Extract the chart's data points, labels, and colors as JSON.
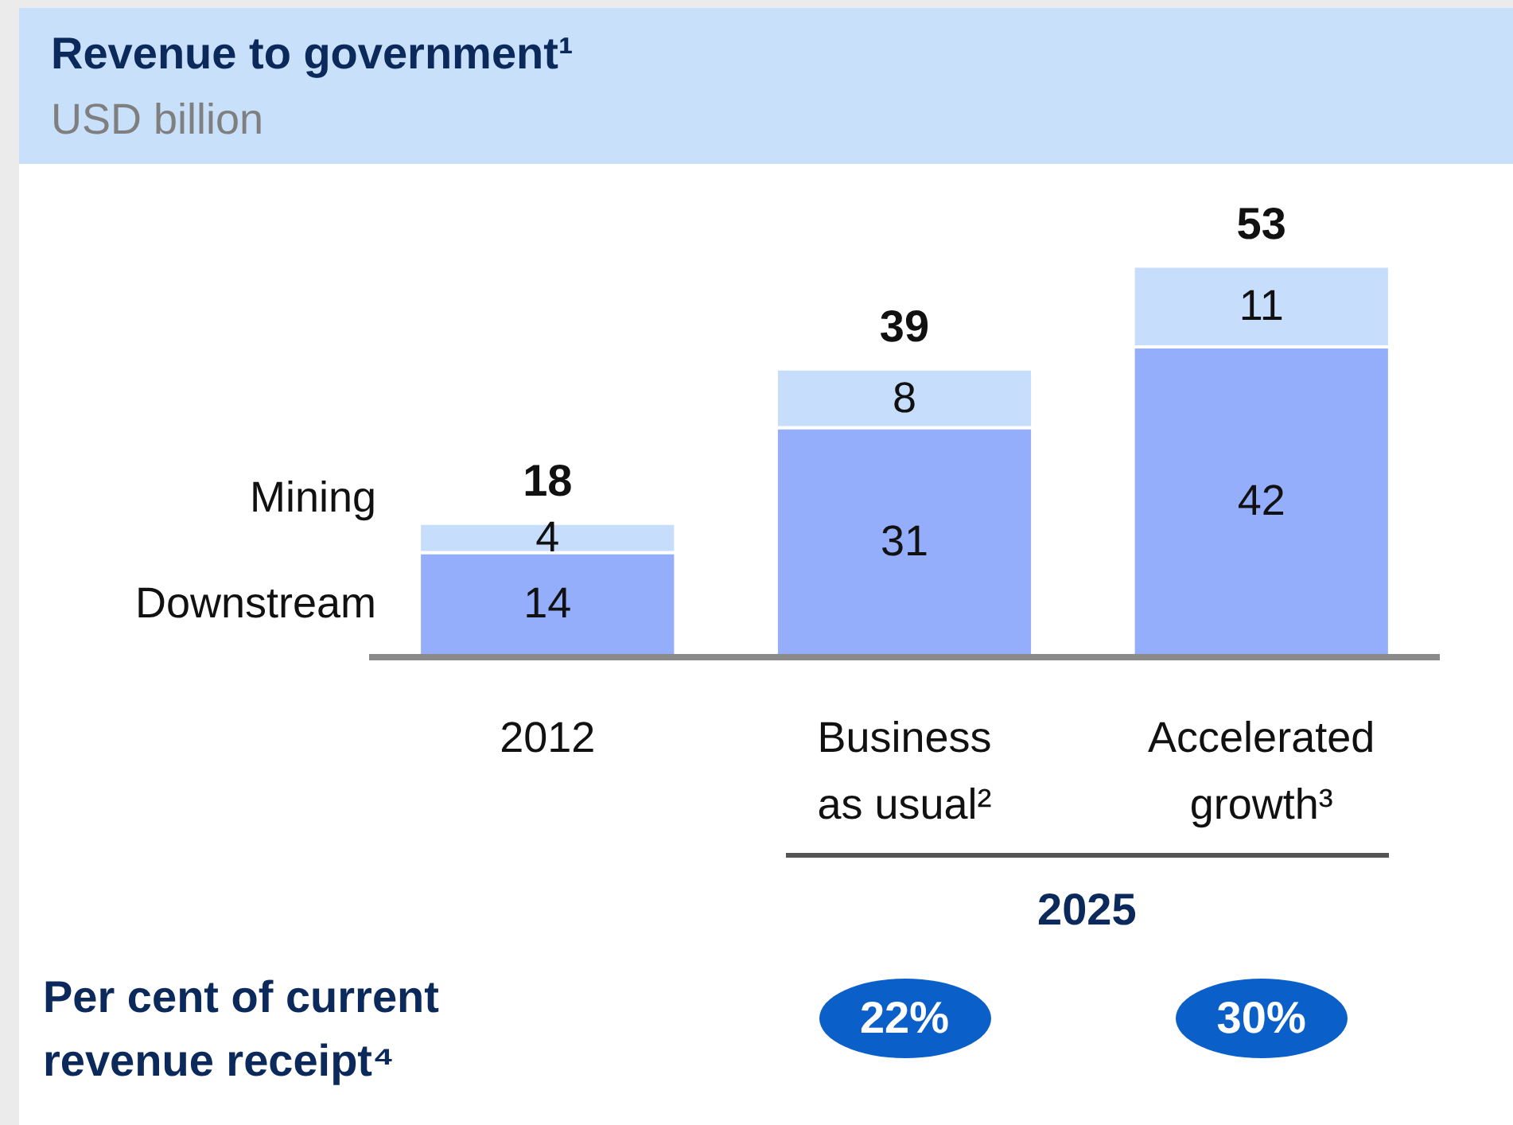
{
  "chart_data": {
    "type": "bar",
    "title": "Revenue to government¹",
    "subtitle": "USD billion",
    "categories": [
      "2012",
      "Business as usual²",
      "Accelerated growth³"
    ],
    "stacked": true,
    "data_labels": true,
    "legend": false,
    "series": [
      {
        "name": "Downstream",
        "color": "#94aefc",
        "values": [
          14,
          31,
          42
        ]
      },
      {
        "name": "Mining",
        "color": "#c6ddfb",
        "values": [
          4,
          8,
          11
        ]
      }
    ],
    "totals": [
      "18",
      "39",
      "53"
    ],
    "annotations": [
      "2025",
      "Per cent of current revenue receipt⁴",
      "22%",
      "30%"
    ]
  }
}
